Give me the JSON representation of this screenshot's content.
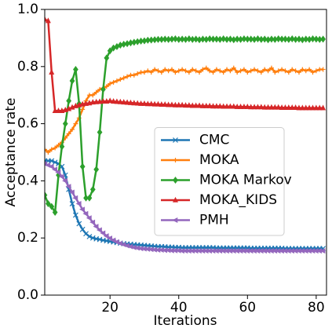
{
  "chart_data": {
    "type": "line",
    "xlabel": "Iterations",
    "ylabel": "Acceptance rate",
    "x": [
      1,
      2,
      3,
      4,
      5,
      6,
      7,
      8,
      9,
      10,
      11,
      12,
      13,
      14,
      15,
      16,
      17,
      18,
      19,
      20,
      21,
      22,
      23,
      24,
      25,
      26,
      27,
      28,
      29,
      30,
      31,
      32,
      33,
      34,
      35,
      36,
      37,
      38,
      39,
      40,
      41,
      42,
      43,
      44,
      45,
      46,
      47,
      48,
      49,
      50,
      51,
      52,
      53,
      54,
      55,
      56,
      57,
      58,
      59,
      60,
      61,
      62,
      63,
      64,
      65,
      66,
      67,
      68,
      69,
      70,
      71,
      72,
      73,
      74,
      75,
      76,
      77,
      78,
      79,
      80,
      81,
      82
    ],
    "xlim": [
      1,
      83
    ],
    "xticks": [
      20,
      40,
      60,
      80
    ],
    "ylim": [
      0,
      1
    ],
    "yticks": [
      {
        "value": 0,
        "label": "0.0"
      },
      {
        "value": 0.2,
        "label": "0.2"
      },
      {
        "value": 0.4,
        "label": "0.4"
      },
      {
        "value": 0.6,
        "label": "0.6"
      },
      {
        "value": 0.8,
        "label": "0.8"
      },
      {
        "value": 1,
        "label": "1.0"
      }
    ],
    "legend": "lower right",
    "series": [
      {
        "name": "CMC",
        "color": "#1f77b4",
        "marker": "x",
        "values": [
          0.47,
          0.47,
          0.47,
          0.465,
          0.46,
          0.45,
          0.42,
          0.37,
          0.32,
          0.28,
          0.25,
          0.23,
          0.215,
          0.205,
          0.2,
          0.197,
          0.195,
          0.192,
          0.19,
          0.188,
          0.186,
          0.184,
          0.182,
          0.18,
          0.179,
          0.178,
          0.177,
          0.176,
          0.175,
          0.174,
          0.173,
          0.172,
          0.171,
          0.17,
          0.17,
          0.169,
          0.168,
          0.168,
          0.167,
          0.167,
          0.166,
          0.166,
          0.166,
          0.166,
          0.166,
          0.166,
          0.166,
          0.166,
          0.166,
          0.166,
          0.165,
          0.165,
          0.165,
          0.165,
          0.165,
          0.165,
          0.165,
          0.165,
          0.165,
          0.165,
          0.164,
          0.164,
          0.164,
          0.164,
          0.164,
          0.164,
          0.164,
          0.164,
          0.164,
          0.164,
          0.163,
          0.163,
          0.163,
          0.163,
          0.163,
          0.163,
          0.163,
          0.163,
          0.163,
          0.163,
          0.163,
          0.163
        ]
      },
      {
        "name": "MOKA",
        "color": "#ff7f0e",
        "marker": "plus",
        "values": [
          0.51,
          0.5,
          0.51,
          0.515,
          0.525,
          0.535,
          0.55,
          0.565,
          0.58,
          0.6,
          0.62,
          0.65,
          0.68,
          0.7,
          0.7,
          0.71,
          0.72,
          0.725,
          0.73,
          0.74,
          0.745,
          0.75,
          0.755,
          0.76,
          0.765,
          0.77,
          0.77,
          0.775,
          0.78,
          0.78,
          0.785,
          0.78,
          0.79,
          0.785,
          0.78,
          0.79,
          0.785,
          0.79,
          0.78,
          0.785,
          0.79,
          0.785,
          0.78,
          0.79,
          0.785,
          0.78,
          0.79,
          0.795,
          0.785,
          0.78,
          0.79,
          0.785,
          0.78,
          0.79,
          0.785,
          0.795,
          0.78,
          0.785,
          0.79,
          0.78,
          0.785,
          0.79,
          0.785,
          0.78,
          0.79,
          0.785,
          0.795,
          0.78,
          0.785,
          0.79,
          0.785,
          0.78,
          0.79,
          0.785,
          0.78,
          0.79,
          0.785,
          0.79,
          0.78,
          0.785,
          0.79,
          0.79
        ]
      },
      {
        "name": "MOKA Markov",
        "color": "#2ca02c",
        "marker": "diamond",
        "values": [
          0.35,
          0.32,
          0.31,
          0.29,
          0.42,
          0.52,
          0.6,
          0.68,
          0.75,
          0.79,
          0.67,
          0.45,
          0.34,
          0.34,
          0.37,
          0.44,
          0.57,
          0.72,
          0.83,
          0.855,
          0.865,
          0.87,
          0.875,
          0.878,
          0.88,
          0.883,
          0.885,
          0.887,
          0.889,
          0.89,
          0.892,
          0.893,
          0.894,
          0.895,
          0.895,
          0.896,
          0.895,
          0.896,
          0.897,
          0.895,
          0.896,
          0.895,
          0.897,
          0.895,
          0.896,
          0.894,
          0.896,
          0.895,
          0.897,
          0.896,
          0.896,
          0.895,
          0.897,
          0.895,
          0.896,
          0.894,
          0.896,
          0.895,
          0.897,
          0.896,
          0.896,
          0.895,
          0.897,
          0.895,
          0.896,
          0.894,
          0.896,
          0.895,
          0.897,
          0.896,
          0.896,
          0.895,
          0.897,
          0.895,
          0.896,
          0.894,
          0.896,
          0.895,
          0.897,
          0.896,
          0.895,
          0.896
        ]
      },
      {
        "name": "MOKA_KIDS",
        "color": "#d62728",
        "marker": "triangle",
        "values": [
          0.965,
          0.96,
          0.78,
          0.645,
          0.645,
          0.645,
          0.648,
          0.652,
          0.657,
          0.662,
          0.665,
          0.668,
          0.67,
          0.672,
          0.675,
          0.676,
          0.677,
          0.678,
          0.678,
          0.68,
          0.678,
          0.677,
          0.676,
          0.675,
          0.674,
          0.673,
          0.672,
          0.671,
          0.67,
          0.67,
          0.669,
          0.669,
          0.668,
          0.668,
          0.667,
          0.667,
          0.666,
          0.666,
          0.665,
          0.665,
          0.665,
          0.664,
          0.664,
          0.663,
          0.663,
          0.663,
          0.662,
          0.662,
          0.662,
          0.661,
          0.661,
          0.661,
          0.66,
          0.66,
          0.66,
          0.66,
          0.659,
          0.659,
          0.659,
          0.659,
          0.658,
          0.658,
          0.658,
          0.658,
          0.657,
          0.657,
          0.657,
          0.657,
          0.657,
          0.656,
          0.656,
          0.656,
          0.656,
          0.656,
          0.655,
          0.655,
          0.655,
          0.655,
          0.655,
          0.655,
          0.655,
          0.655
        ]
      },
      {
        "name": "PMH",
        "color": "#9467bd",
        "marker": "left",
        "values": [
          0.46,
          0.455,
          0.45,
          0.44,
          0.43,
          0.415,
          0.4,
          0.38,
          0.36,
          0.34,
          0.32,
          0.3,
          0.285,
          0.27,
          0.255,
          0.24,
          0.228,
          0.217,
          0.207,
          0.199,
          0.192,
          0.186,
          0.181,
          0.177,
          0.173,
          0.17,
          0.167,
          0.165,
          0.163,
          0.162,
          0.161,
          0.16,
          0.159,
          0.158,
          0.158,
          0.157,
          0.157,
          0.156,
          0.156,
          0.156,
          0.155,
          0.155,
          0.155,
          0.155,
          0.155,
          0.155,
          0.155,
          0.155,
          0.155,
          0.155,
          0.155,
          0.155,
          0.155,
          0.155,
          0.155,
          0.155,
          0.155,
          0.155,
          0.155,
          0.155,
          0.155,
          0.155,
          0.155,
          0.155,
          0.155,
          0.155,
          0.155,
          0.155,
          0.155,
          0.155,
          0.155,
          0.155,
          0.155,
          0.155,
          0.155,
          0.155,
          0.155,
          0.155,
          0.155,
          0.155,
          0.155,
          0.155
        ]
      }
    ]
  }
}
